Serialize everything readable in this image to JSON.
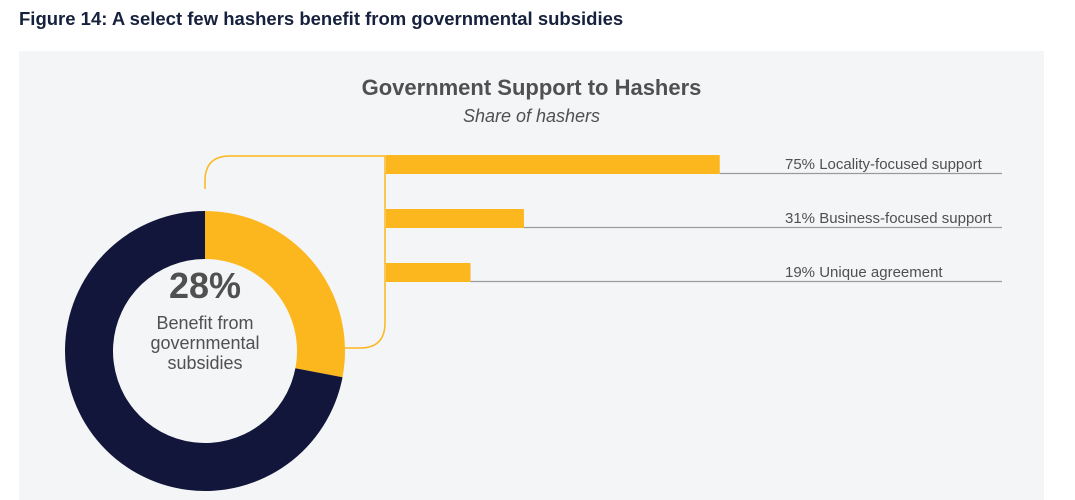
{
  "figure_caption": "Figure 14: A select few hashers benefit from governmental subsidies",
  "chart_data": [
    {
      "type": "pie",
      "style": "donut",
      "slices": [
        {
          "name": "Benefit from governmental subsidies",
          "value": 28,
          "color": "#fdb71e"
        },
        {
          "name": "",
          "value": 72,
          "color": "#12163a"
        }
      ],
      "center_value": "28%",
      "center_label": [
        "Benefit from",
        "governmental",
        "subsidies"
      ]
    },
    {
      "type": "bar",
      "orientation": "horizontal",
      "title": "Government Support to Hashers",
      "subtitle": "Share of hashers",
      "unit": "%",
      "xlim": [
        0,
        100
      ],
      "color": "#fdb71e",
      "categories": [
        "Locality-focused support",
        "Business-focused support",
        "Unique agreement"
      ],
      "values": [
        75,
        31,
        19
      ],
      "labels": [
        "75% Locality-focused support",
        "31% Business-focused support",
        "19% Unique agreement"
      ]
    }
  ]
}
